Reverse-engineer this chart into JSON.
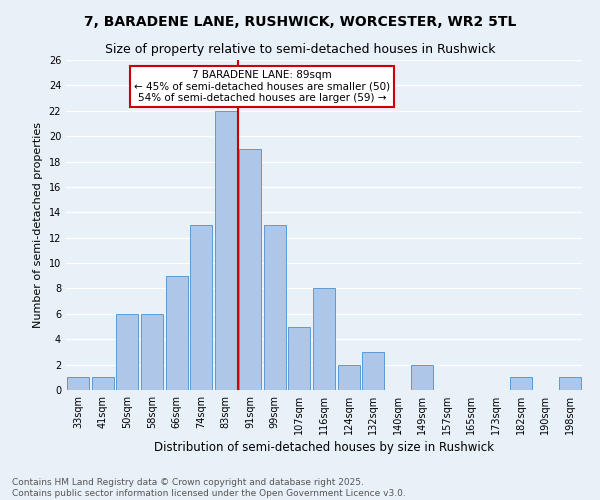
{
  "title": "7, BARADENE LANE, RUSHWICK, WORCESTER, WR2 5TL",
  "subtitle": "Size of property relative to semi-detached houses in Rushwick",
  "xlabel": "Distribution of semi-detached houses by size in Rushwick",
  "ylabel": "Number of semi-detached properties",
  "categories": [
    "33sqm",
    "41sqm",
    "50sqm",
    "58sqm",
    "66sqm",
    "74sqm",
    "83sqm",
    "91sqm",
    "99sqm",
    "107sqm",
    "116sqm",
    "124sqm",
    "132sqm",
    "140sqm",
    "149sqm",
    "157sqm",
    "165sqm",
    "173sqm",
    "182sqm",
    "190sqm",
    "198sqm"
  ],
  "values": [
    1,
    1,
    6,
    6,
    9,
    13,
    22,
    19,
    13,
    5,
    8,
    2,
    3,
    0,
    2,
    0,
    0,
    0,
    1,
    0,
    1
  ],
  "bar_color": "#aec6e8",
  "bar_edge_color": "#5b9bd5",
  "property_bin_index": 6,
  "vline_color": "#cc0000",
  "annotation_text": "7 BARADENE LANE: 89sqm\n← 45% of semi-detached houses are smaller (50)\n54% of semi-detached houses are larger (59) →",
  "annotation_box_edge_color": "#cc0000",
  "background_color": "#e8f0f8",
  "grid_color": "#ffffff",
  "ylim": [
    0,
    26
  ],
  "yticks": [
    0,
    2,
    4,
    6,
    8,
    10,
    12,
    14,
    16,
    18,
    20,
    22,
    24,
    26
  ],
  "footer_text": "Contains HM Land Registry data © Crown copyright and database right 2025.\nContains public sector information licensed under the Open Government Licence v3.0.",
  "title_fontsize": 10,
  "subtitle_fontsize": 9,
  "xlabel_fontsize": 8.5,
  "ylabel_fontsize": 8,
  "tick_fontsize": 7,
  "annotation_fontsize": 7.5,
  "footer_fontsize": 6.5
}
